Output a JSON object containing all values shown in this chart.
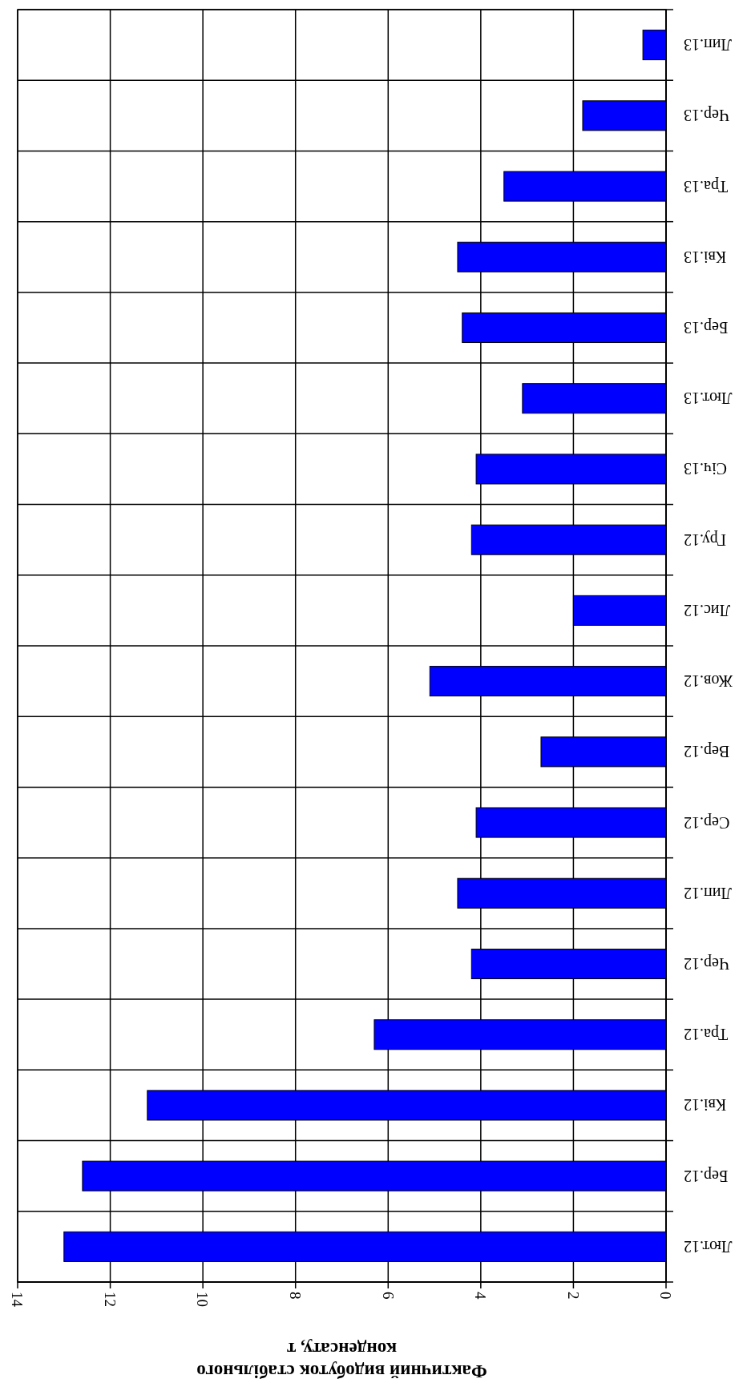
{
  "chart_data": {
    "type": "bar",
    "orientation": "horizontal",
    "xlabel": "Фактичний видобуток стабільного конденсату, т",
    "categories": [
      "Лип.13",
      "Чер.13",
      "Тра.13",
      "Кві.13",
      "Бер.13",
      "Лют.13",
      "Січ.13",
      "Гру.12",
      "Лис.12",
      "Жов.12",
      "Вер.12",
      "Сер.12",
      "Лип.12",
      "Чер.12",
      "Тра.12",
      "Кві.12",
      "Бер.12",
      "Лют.12"
    ],
    "values": [
      0.5,
      1.8,
      3.5,
      4.5,
      4.4,
      3.1,
      4.1,
      4.2,
      2.0,
      5.1,
      2.7,
      4.1,
      4.5,
      4.2,
      6.3,
      11.2,
      12.6,
      13.0
    ],
    "color": "#0000ff",
    "xlim": [
      14,
      0
    ],
    "xticks": [
      0,
      2,
      4,
      6,
      8,
      10,
      12,
      14
    ],
    "grid": true
  }
}
